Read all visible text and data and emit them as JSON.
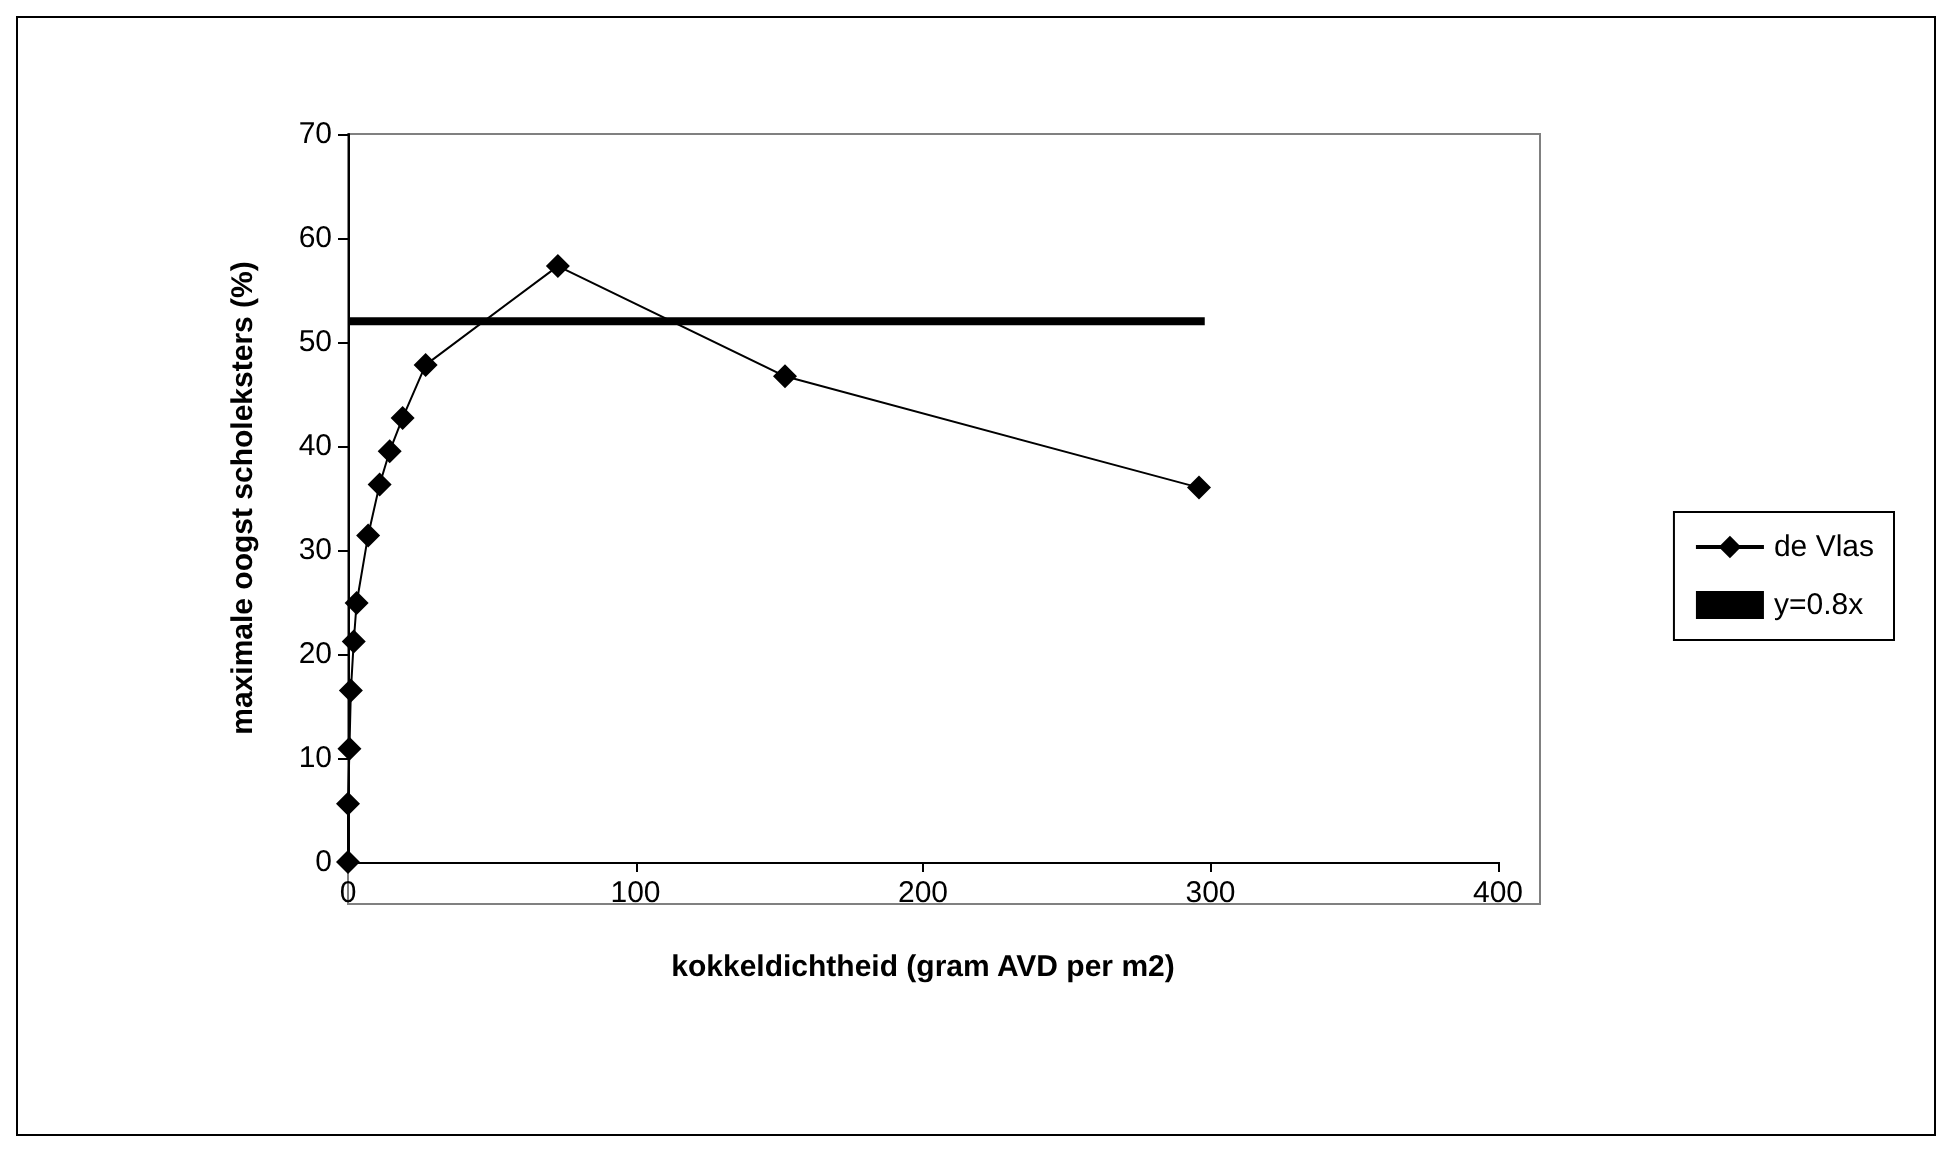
{
  "chart_data": {
    "type": "line",
    "xlabel": "kokkeldichtheid (gram AVD per m2)",
    "ylabel": "maximale oogst scholeksters (%)",
    "xlim": [
      0,
      400
    ],
    "xticks": [
      0,
      100,
      200,
      300,
      400
    ],
    "ylim": [
      0,
      70
    ],
    "yticks": [
      0,
      10,
      20,
      30,
      40,
      50,
      60,
      70
    ],
    "grid": false,
    "legend": "right",
    "series": [
      {
        "name": "de Vlas",
        "color": "#000000",
        "marker": "diamond",
        "x": [
          0,
          0,
          0.5,
          1,
          2,
          3,
          7,
          11,
          14.5,
          19,
          27,
          73,
          152,
          296
        ],
        "values": [
          0,
          5.6,
          10.9,
          16.5,
          21.2,
          24.9,
          31.4,
          36.3,
          39.5,
          42.7,
          47.8,
          57.3,
          46.7,
          36
        ]
      },
      {
        "name": "y=0.8x",
        "color": "#000000",
        "marker": "none",
        "x": [
          0,
          298
        ],
        "values": [
          52,
          52
        ]
      }
    ]
  }
}
